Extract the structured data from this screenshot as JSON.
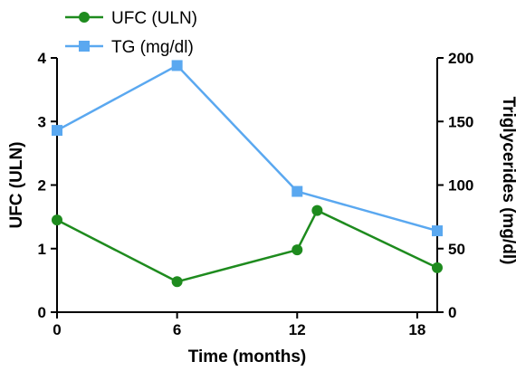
{
  "chart_data": {
    "type": "line",
    "xlabel": "Time (months)",
    "ylabel_left": "UFC (ULN)",
    "ylabel_right": "Triglycerides (mg/dl)",
    "x_ticks": [
      0,
      6,
      12,
      18
    ],
    "y_left_ticks": [
      0,
      1,
      2,
      3,
      4
    ],
    "y_right_ticks": [
      0,
      50,
      100,
      150,
      200
    ],
    "xlim": [
      0,
      19
    ],
    "ylim_left": [
      0,
      4
    ],
    "ylim_right": [
      0,
      200
    ],
    "grid": false,
    "legend_position": "top-left",
    "series": [
      {
        "name": "UFC (ULN)",
        "axis": "left",
        "marker": "circle",
        "color": "#1e8b1e",
        "x": [
          0,
          6,
          12,
          13,
          19
        ],
        "y": [
          1.45,
          0.48,
          0.98,
          1.6,
          0.7
        ]
      },
      {
        "name": "TG (mg/dl)",
        "axis": "right",
        "marker": "square",
        "color": "#5aa8f0",
        "x": [
          0,
          6,
          12,
          19
        ],
        "y": [
          143,
          194,
          95,
          64
        ]
      }
    ]
  }
}
